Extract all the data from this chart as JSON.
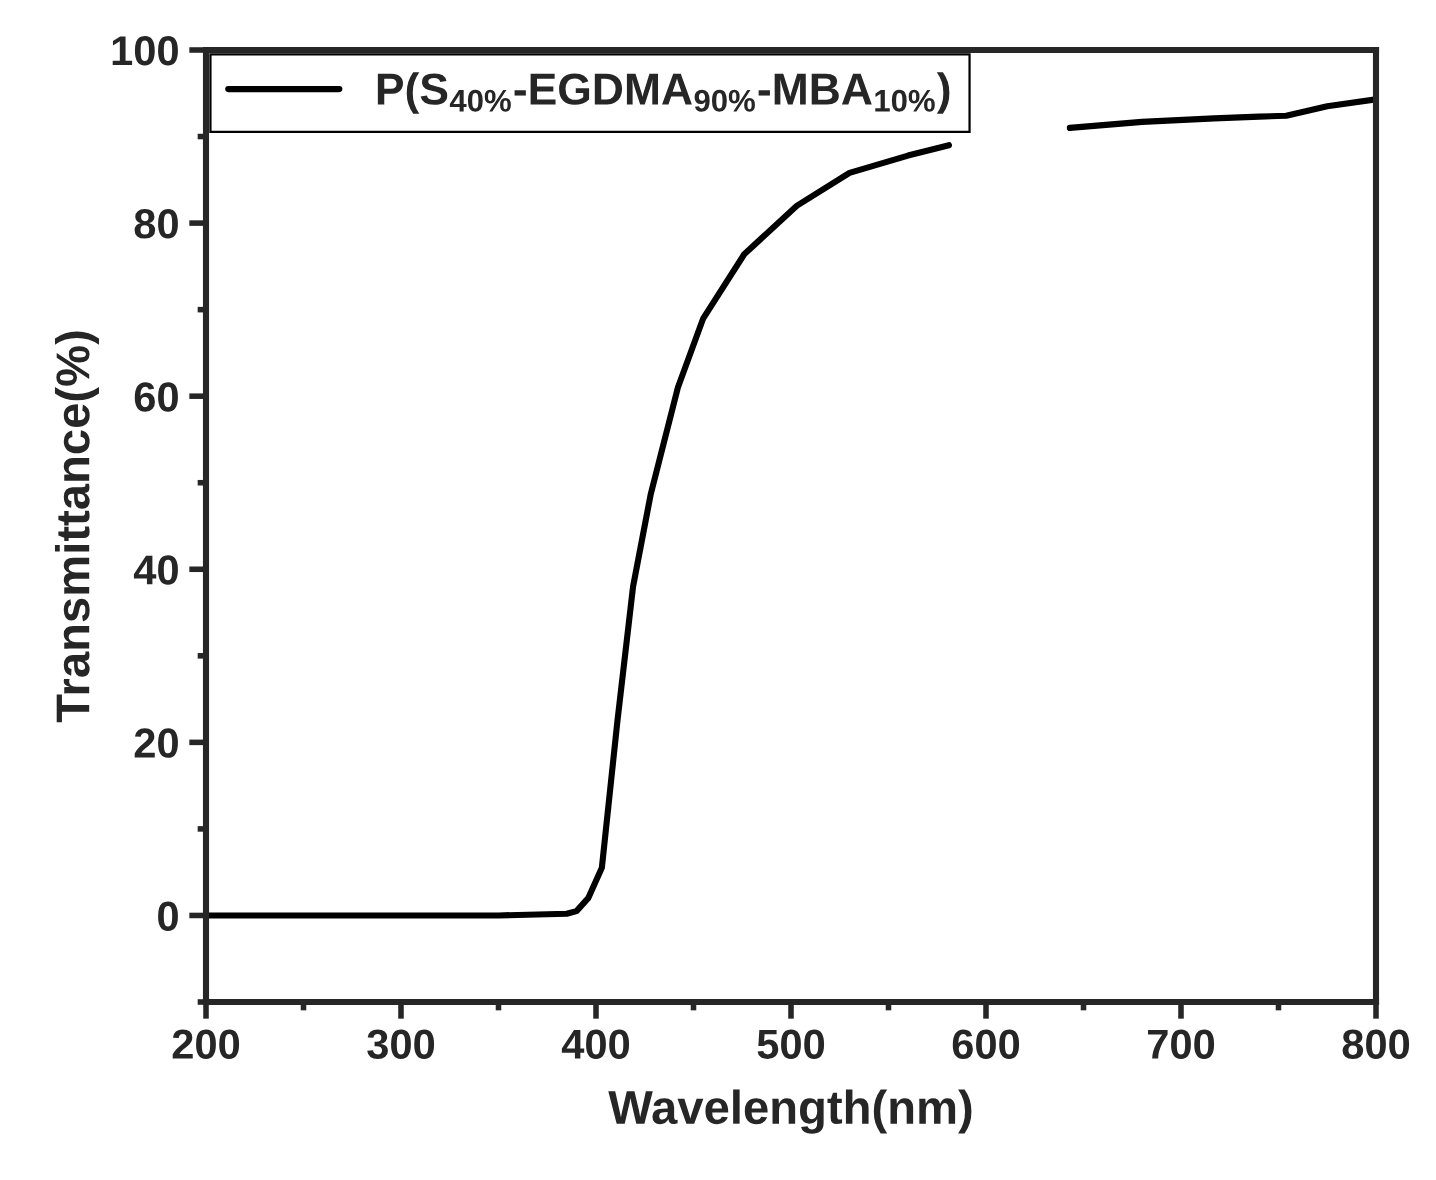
{
  "chart_data": {
    "type": "line",
    "xlabel": "Wavelength(nm)",
    "ylabel": "Transmittance(%)",
    "series": [
      {
        "name": "P(S$_{40%}$-EGDMA$_{90%}$-MBA$_{10%}$)",
        "color": "#000000",
        "x": [
          200,
          250,
          300,
          350,
          385,
          390,
          396,
          403,
          411,
          419,
          428,
          442,
          455,
          476,
          503,
          530,
          560,
          581,
          610,
          643,
          680,
          717,
          740,
          754,
          775,
          800
        ],
        "values": [
          0,
          0,
          0,
          0,
          0.2,
          0.5,
          2,
          5.5,
          22.5,
          38,
          48.6,
          61,
          69,
          76.4,
          82,
          85.8,
          87.8,
          89,
          null,
          91,
          91.7,
          92.1,
          92.3,
          92.4,
          93.5,
          94.3
        ]
      }
    ],
    "xlim": [
      200,
      800
    ],
    "ylim": [
      -10,
      100
    ],
    "xticks": [
      200,
      300,
      400,
      500,
      600,
      700,
      800
    ],
    "yticks": [
      0,
      20,
      40,
      60,
      80,
      100
    ],
    "grid": false,
    "legend": "top left",
    "marker": "none",
    "line_style": "solid"
  }
}
